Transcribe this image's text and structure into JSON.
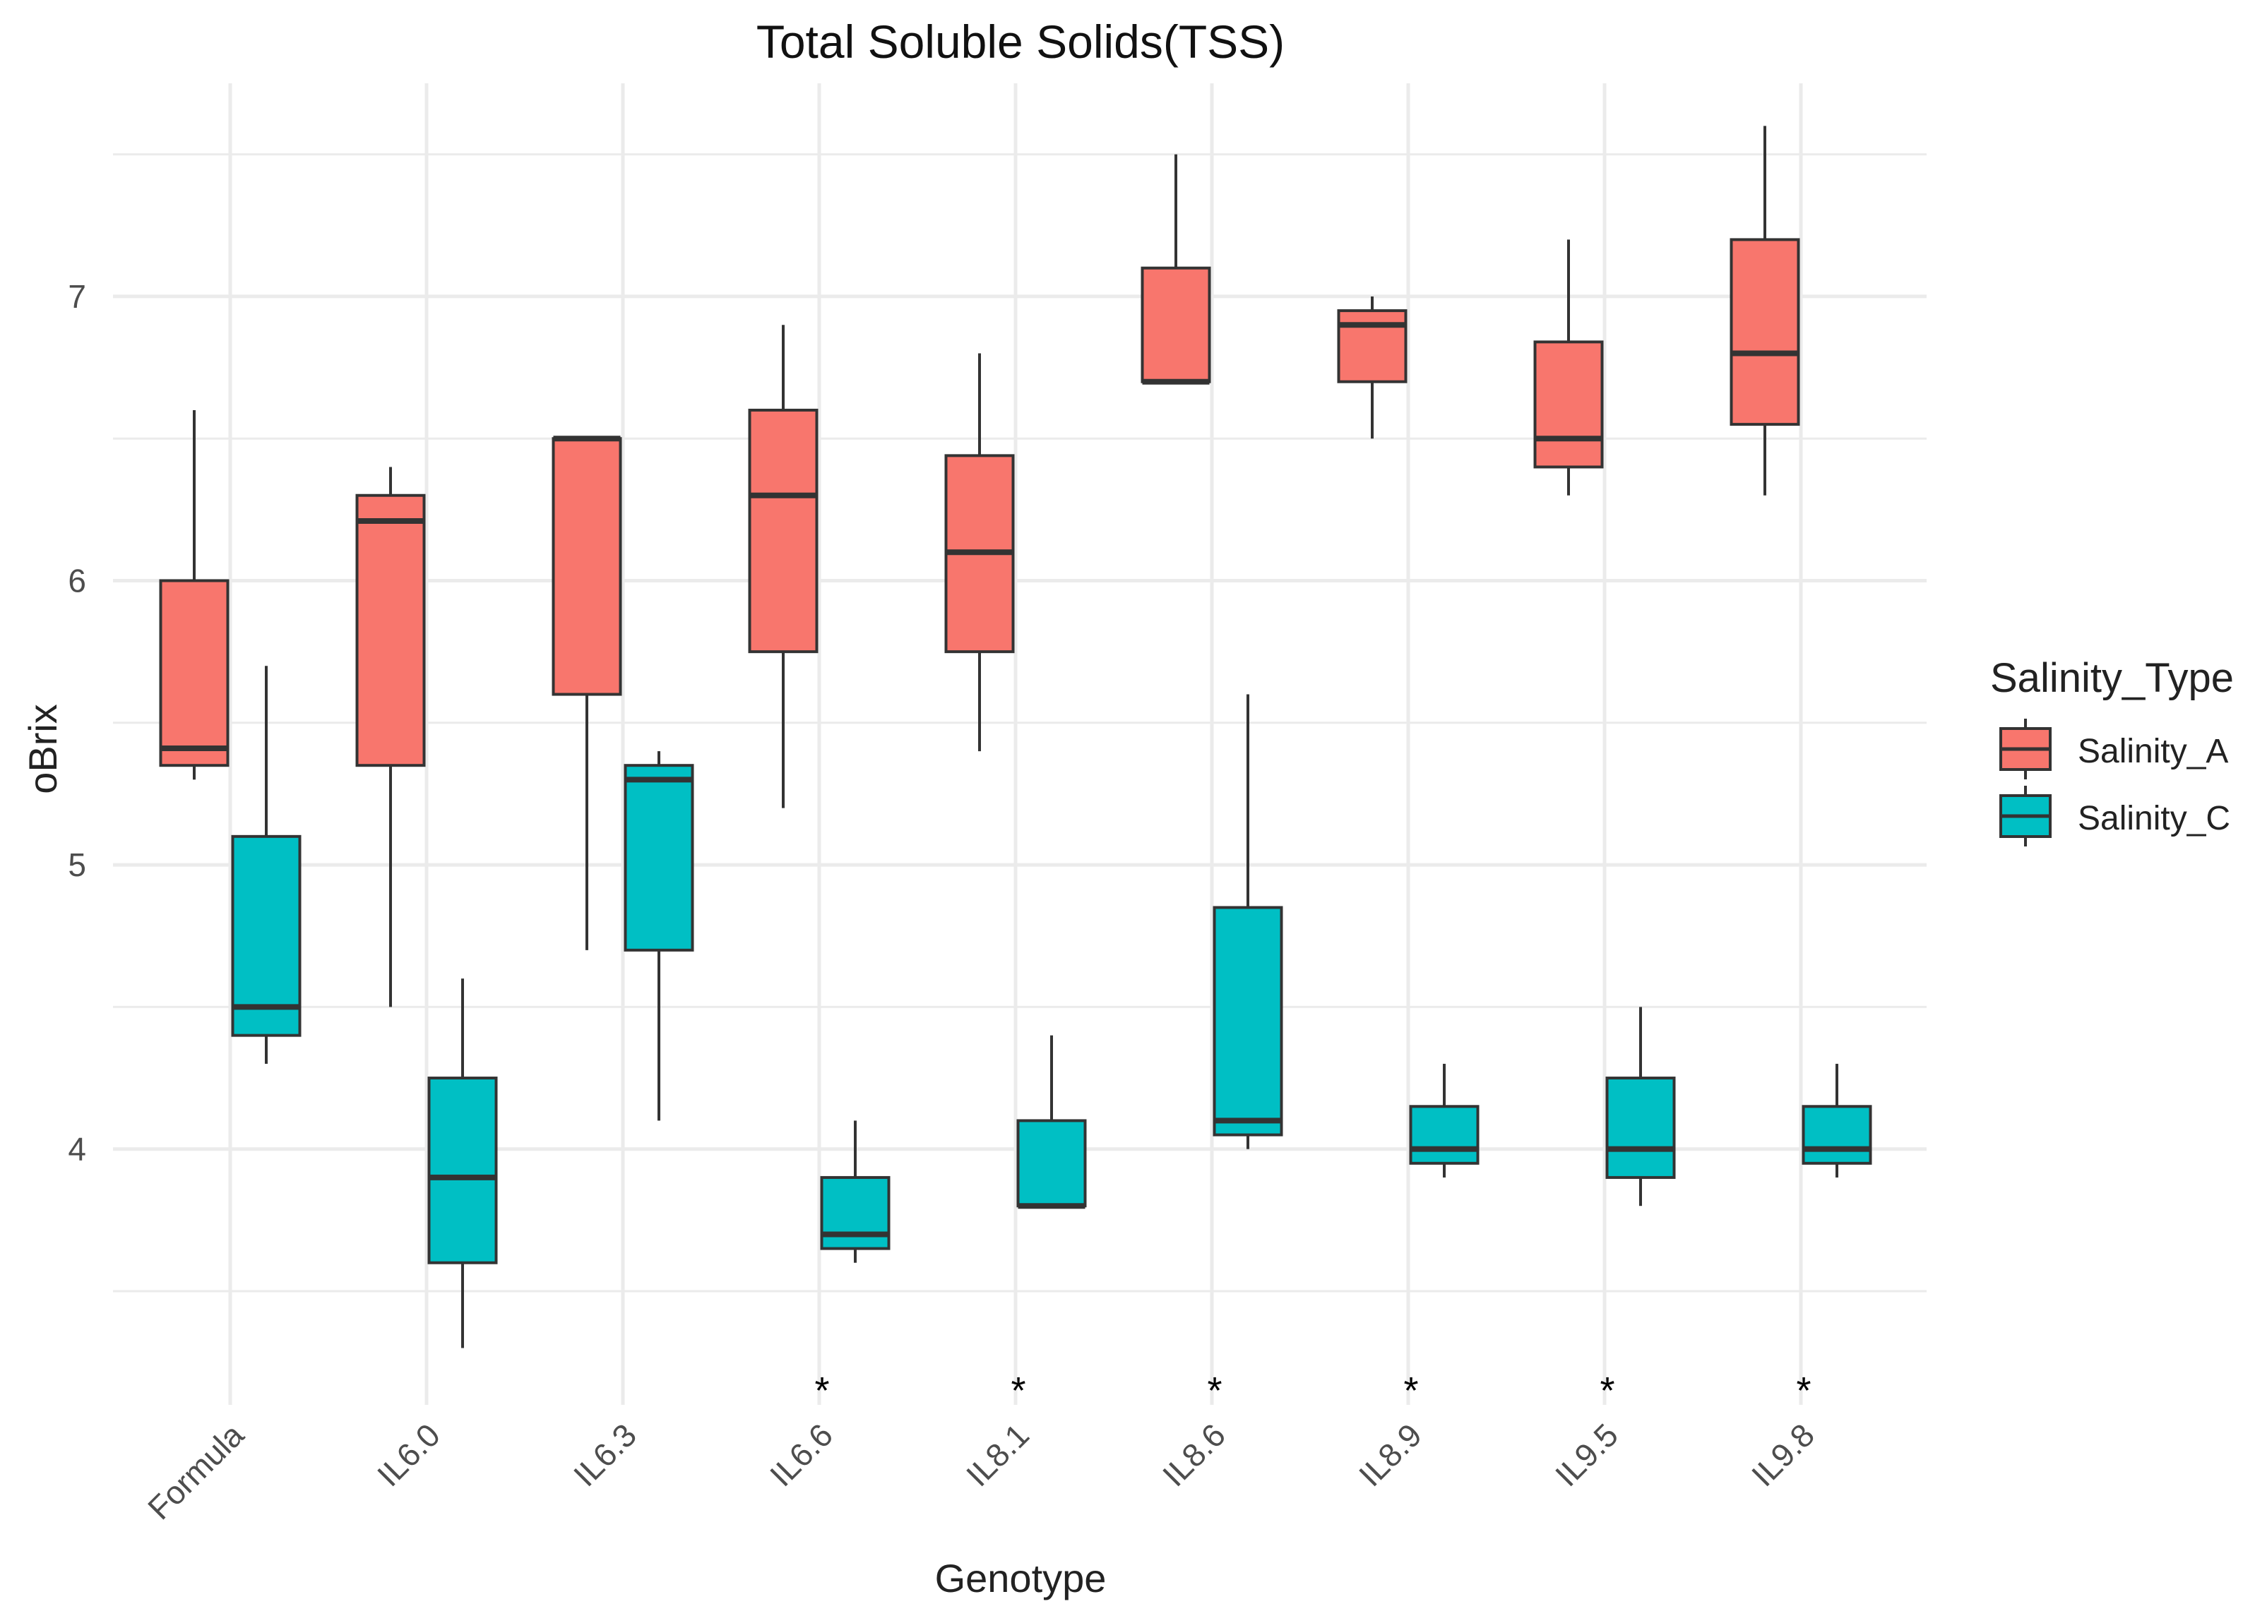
{
  "colors": {
    "background": "#ffffff",
    "grid": "#ebebeb",
    "salinity_a": "#F8766D",
    "salinity_c": "#00BFC4",
    "outline": "#333333",
    "text": "#222222",
    "tick_text": "#4d4d4d"
  },
  "chart_data": {
    "type": "boxplot",
    "title": "Total Soluble Solids(TSS)",
    "xlabel": "Genotype",
    "ylabel": "oBrix",
    "ylim": [
      3.1,
      7.75
    ],
    "yticks": [
      4,
      5,
      6,
      7
    ],
    "ytick_labels": [
      "4",
      "5",
      "6",
      "7"
    ],
    "grid": true,
    "categories": [
      "Formula",
      "IL6.0",
      "IL6.3",
      "IL6.6",
      "IL8.1",
      "IL8.6",
      "IL8.9",
      "IL9.5",
      "IL9.8"
    ],
    "significance_marks": [
      "",
      "",
      "",
      "*",
      "*",
      "*",
      "*",
      "*",
      "*"
    ],
    "legend": {
      "title": "Salinity_Type",
      "position": "right",
      "entries": [
        "Salinity_A",
        "Salinity_C"
      ]
    },
    "series": [
      {
        "name": "Salinity_A",
        "boxes": [
          {
            "min": 5.3,
            "q1": 5.35,
            "median": 5.41,
            "q3": 6.0,
            "max": 6.6
          },
          {
            "min": 4.5,
            "q1": 5.35,
            "median": 6.21,
            "q3": 6.3,
            "max": 6.4
          },
          {
            "min": 4.7,
            "q1": 5.6,
            "median": 6.5,
            "q3": 6.5,
            "max": 6.5
          },
          {
            "min": 5.2,
            "q1": 5.75,
            "median": 6.3,
            "q3": 6.6,
            "max": 6.9
          },
          {
            "min": 5.4,
            "q1": 5.75,
            "median": 6.1,
            "q3": 6.44,
            "max": 6.8
          },
          {
            "min": 6.7,
            "q1": 6.7,
            "median": 6.7,
            "q3": 7.1,
            "max": 7.5
          },
          {
            "min": 6.5,
            "q1": 6.7,
            "median": 6.9,
            "q3": 6.95,
            "max": 7.0
          },
          {
            "min": 6.3,
            "q1": 6.4,
            "median": 6.5,
            "q3": 6.84,
            "max": 7.2
          },
          {
            "min": 6.3,
            "q1": 6.55,
            "median": 6.8,
            "q3": 7.2,
            "max": 7.6
          }
        ]
      },
      {
        "name": "Salinity_C",
        "boxes": [
          {
            "min": 4.3,
            "q1": 4.4,
            "median": 4.5,
            "q3": 5.1,
            "max": 5.7
          },
          {
            "min": 3.3,
            "q1": 3.6,
            "median": 3.9,
            "q3": 4.25,
            "max": 4.6
          },
          {
            "min": 4.1,
            "q1": 4.7,
            "median": 5.3,
            "q3": 5.35,
            "max": 5.4
          },
          {
            "min": 3.6,
            "q1": 3.65,
            "median": 3.7,
            "q3": 3.9,
            "max": 4.1
          },
          {
            "min": 3.8,
            "q1": 3.8,
            "median": 3.8,
            "q3": 4.1,
            "max": 4.4
          },
          {
            "min": 4.0,
            "q1": 4.05,
            "median": 4.1,
            "q3": 4.85,
            "max": 5.6
          },
          {
            "min": 3.9,
            "q1": 3.95,
            "median": 4.0,
            "q3": 4.15,
            "max": 4.3
          },
          {
            "min": 3.8,
            "q1": 3.9,
            "median": 4.0,
            "q3": 4.25,
            "max": 4.5
          },
          {
            "min": 3.9,
            "q1": 3.95,
            "median": 4.0,
            "q3": 4.15,
            "max": 4.3
          }
        ]
      }
    ]
  }
}
